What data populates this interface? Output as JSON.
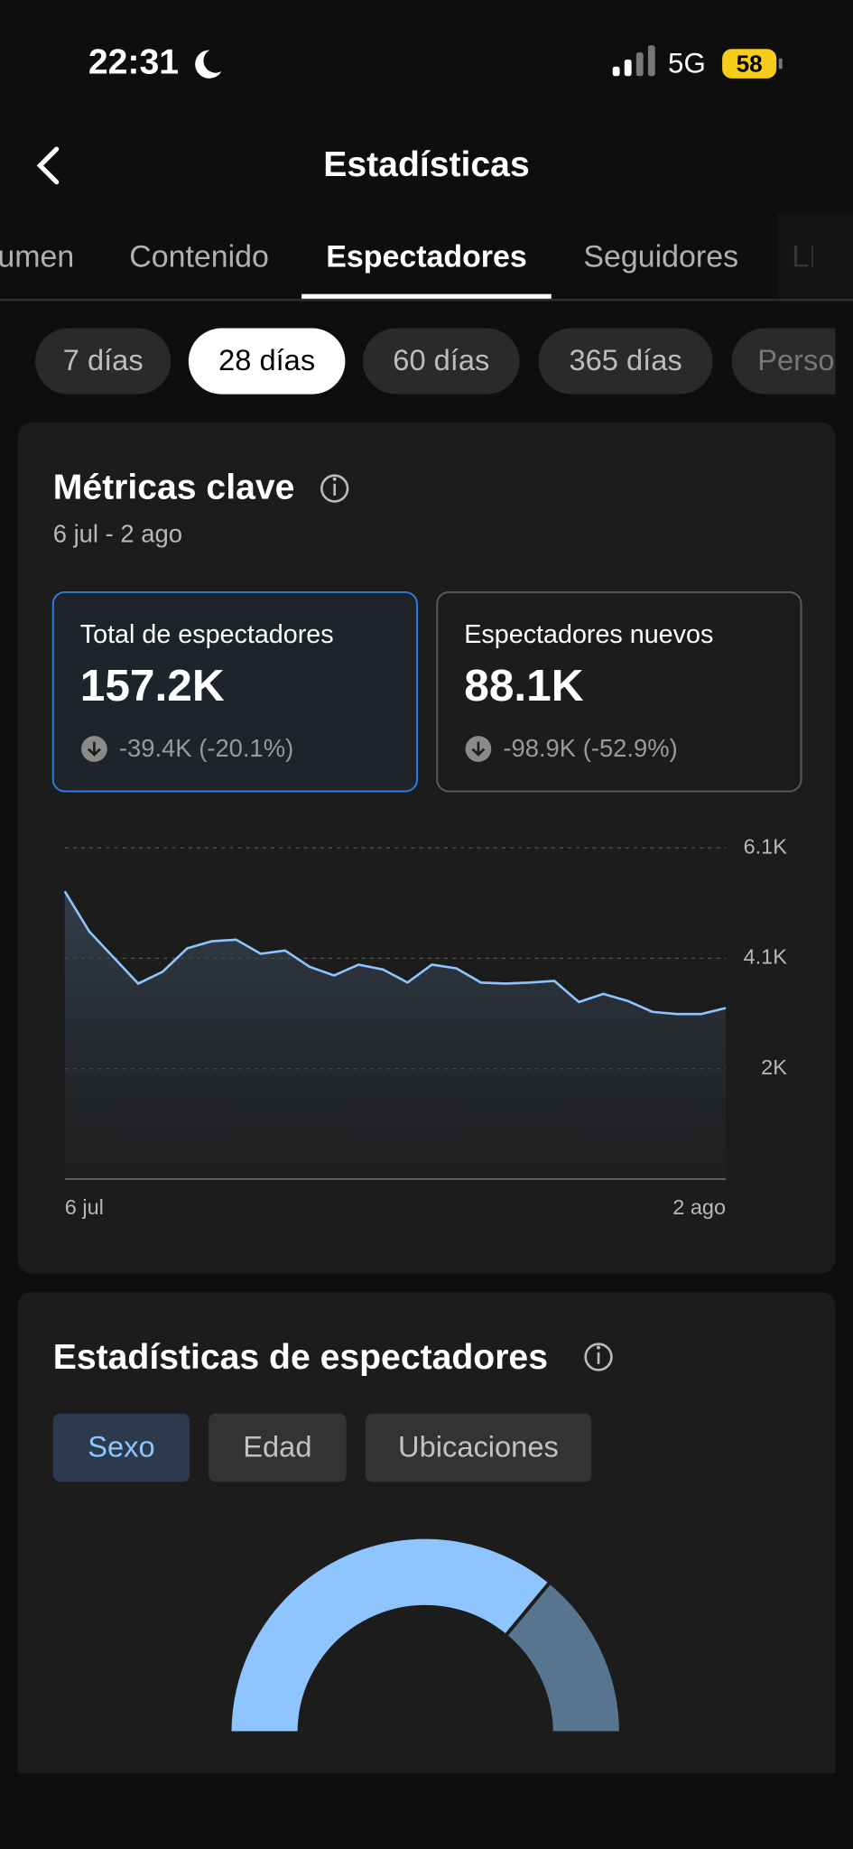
{
  "status_bar": {
    "time": "22:31",
    "network": "5G",
    "battery": "58"
  },
  "header": {
    "title": "Estadísticas"
  },
  "tabs": {
    "items": [
      "Resumen",
      "Contenido",
      "Espectadores",
      "Seguidores",
      "LIVE"
    ],
    "active": 2
  },
  "periods": {
    "items": [
      "7 días",
      "28 días",
      "60 días",
      "365 días",
      "Personalizado"
    ],
    "active": 1
  },
  "key_metrics": {
    "title": "Métricas clave",
    "date_range": "6 jul - 2 ago",
    "cards": [
      {
        "label": "Total de espectadores",
        "value": "157.2K",
        "change": "-39.4K (-20.1%)"
      },
      {
        "label": "Espectadores nuevos",
        "value": "88.1K",
        "change": "-98.9K (-52.9%)"
      }
    ]
  },
  "viewer_stats": {
    "title": "Estadísticas de espectadores",
    "tabs": [
      "Sexo",
      "Edad",
      "Ubicaciones"
    ],
    "active": 0
  },
  "chart_data": [
    {
      "type": "line",
      "color": "#8ec5ff",
      "categories": [
        "6 jul",
        null,
        null,
        null,
        null,
        null,
        null,
        null,
        null,
        null,
        null,
        null,
        null,
        null,
        null,
        null,
        null,
        null,
        null,
        null,
        null,
        null,
        null,
        null,
        null,
        null,
        null,
        "2 ago"
      ],
      "values": [
        5300,
        4560,
        4080,
        3600,
        3820,
        4250,
        4380,
        4410,
        4150,
        4210,
        3910,
        3750,
        3950,
        3860,
        3620,
        3950,
        3880,
        3620,
        3600,
        3620,
        3650,
        3260,
        3410,
        3280,
        3080,
        3040,
        3040,
        3150
      ],
      "ylim": [
        0,
        6100
      ],
      "yticks": [
        {
          "value": 2033,
          "label": "2K"
        },
        {
          "value": 4067,
          "label": "4.1K"
        },
        {
          "value": 6100,
          "label": "6.1K"
        }
      ],
      "grid": true
    },
    {
      "type": "gauge",
      "values": [
        72,
        28
      ],
      "colors": [
        "#8ec5ff",
        "#587590"
      ]
    }
  ]
}
